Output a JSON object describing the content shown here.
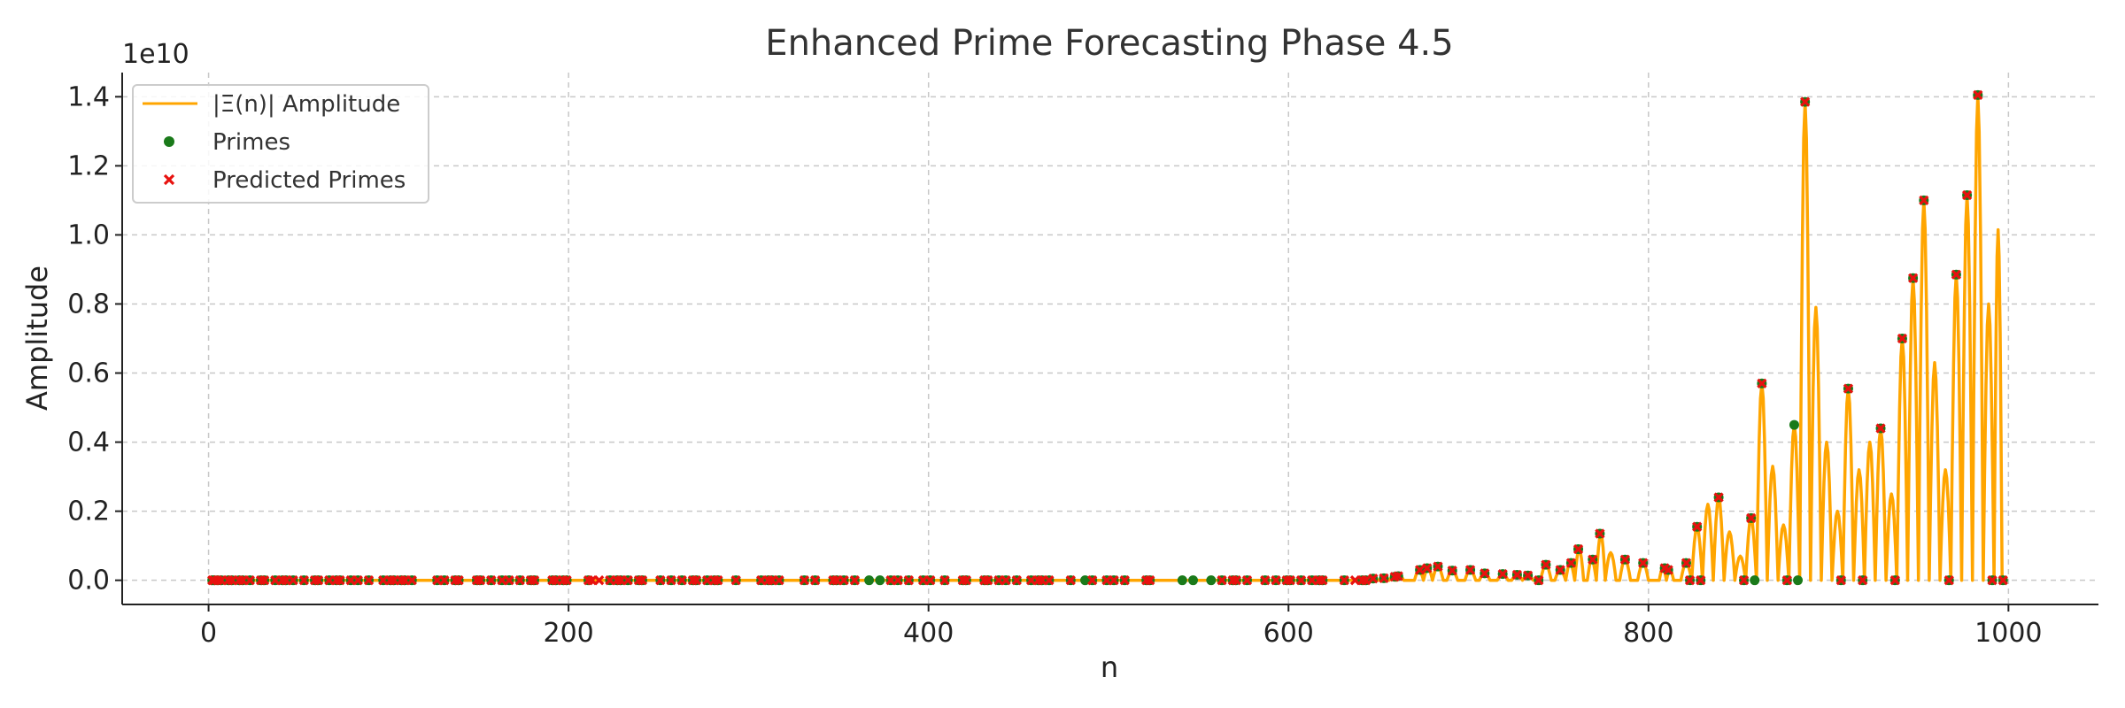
{
  "colors": {
    "amplitude": "#FFA500",
    "primes": "#1a7a1a",
    "predicted": "#e8120f",
    "grid": "#c8c8c8",
    "axis": "#222222"
  },
  "chart_data": {
    "type": "line",
    "title": "Enhanced Prime Forecasting Phase 4.5",
    "xlabel": "n",
    "ylabel": "Amplitude",
    "y_offset_label": "1e10",
    "xlim": [
      -48,
      1050
    ],
    "ylim": [
      -0.07,
      1.47
    ],
    "xticks": [
      0,
      200,
      400,
      600,
      800,
      1000
    ],
    "yticks": [
      0.0,
      0.2,
      0.4,
      0.6,
      0.8,
      1.0,
      1.2,
      1.4
    ],
    "ytick_labels": [
      "0.0",
      "0.2",
      "0.4",
      "0.6",
      "0.8",
      "1.0",
      "1.2",
      "1.4"
    ],
    "grid": true,
    "legend_position": "top-left",
    "legend": [
      "|Ξ(n)| Amplitude",
      "Primes",
      "Predicted Primes"
    ],
    "series": [
      {
        "name": "|Ξ(n)| Amplitude",
        "kind": "line",
        "peaks": [
          [
            647,
            0.005
          ],
          [
            653,
            0.006
          ],
          [
            659,
            0.01
          ],
          [
            661,
            0.012
          ],
          [
            673,
            0.03
          ],
          [
            677,
            0.035
          ],
          [
            683,
            0.04
          ],
          [
            691,
            0.028
          ],
          [
            701,
            0.03
          ],
          [
            709,
            0.02
          ],
          [
            719,
            0.018
          ],
          [
            727,
            0.016
          ],
          [
            733,
            0.014
          ],
          [
            743,
            0.045
          ],
          [
            751,
            0.03
          ],
          [
            757,
            0.05
          ],
          [
            761,
            0.09
          ],
          [
            769,
            0.06
          ],
          [
            773,
            0.135
          ],
          [
            779,
            0.08
          ],
          [
            787,
            0.06
          ],
          [
            797,
            0.05
          ],
          [
            809,
            0.035
          ],
          [
            811,
            0.03
          ],
          [
            821,
            0.05
          ],
          [
            827,
            0.155
          ],
          [
            833,
            0.22
          ],
          [
            839,
            0.24
          ],
          [
            845,
            0.14
          ],
          [
            851,
            0.07
          ],
          [
            857,
            0.18
          ],
          [
            863,
            0.57
          ],
          [
            869,
            0.33
          ],
          [
            875,
            0.16
          ],
          [
            881,
            0.45
          ],
          [
            887,
            1.385
          ],
          [
            893,
            0.79
          ],
          [
            899,
            0.4
          ],
          [
            905,
            0.2
          ],
          [
            911,
            0.555
          ],
          [
            917,
            0.32
          ],
          [
            923,
            0.4
          ],
          [
            929,
            0.44
          ],
          [
            935,
            0.25
          ],
          [
            941,
            0.7
          ],
          [
            947,
            0.875
          ],
          [
            953,
            1.1
          ],
          [
            959,
            0.63
          ],
          [
            965,
            0.32
          ],
          [
            971,
            0.885
          ],
          [
            977,
            1.115
          ],
          [
            983,
            1.405
          ],
          [
            989,
            0.8
          ],
          [
            995,
            1.015
          ]
        ]
      },
      {
        "name": "Primes",
        "kind": "scatter",
        "x": [
          2,
          3,
          5,
          7,
          11,
          13,
          17,
          19,
          23,
          29,
          31,
          37,
          41,
          43,
          47,
          53,
          59,
          61,
          67,
          71,
          73,
          79,
          83,
          89,
          97,
          101,
          103,
          107,
          109,
          113,
          127,
          131,
          137,
          139,
          149,
          151,
          157,
          163,
          167,
          173,
          179,
          181,
          191,
          193,
          197,
          199,
          211,
          223,
          227,
          229,
          233,
          239,
          241,
          251,
          257,
          263,
          269,
          271,
          277,
          281,
          283,
          293,
          307,
          311,
          313,
          317,
          331,
          337,
          347,
          349,
          353,
          359,
          367,
          373,
          379,
          383,
          389,
          397,
          401,
          409,
          419,
          421,
          431,
          433,
          439,
          443,
          449,
          457,
          461,
          463,
          467,
          479,
          487,
          491,
          499,
          503,
          509,
          521,
          523,
          541,
          547,
          557,
          563,
          569,
          571,
          577,
          587,
          593,
          599,
          601,
          607,
          613,
          617,
          619,
          631,
          641,
          643,
          647,
          653,
          659,
          661,
          673,
          677,
          683,
          691,
          701,
          709,
          719,
          727,
          733,
          739,
          743,
          751,
          757,
          761,
          769,
          773,
          787,
          797,
          809,
          811,
          821,
          823,
          827,
          829,
          839,
          853,
          857,
          859,
          863,
          877,
          881,
          883,
          887,
          907,
          911,
          919,
          929,
          937,
          941,
          947,
          953,
          967,
          971,
          977,
          983,
          991,
          997
        ]
      },
      {
        "name": "Predicted Primes",
        "kind": "scatter",
        "x": [
          2,
          3,
          5,
          7,
          11,
          13,
          17,
          19,
          23,
          29,
          31,
          37,
          41,
          43,
          47,
          53,
          59,
          61,
          67,
          71,
          73,
          79,
          83,
          89,
          97,
          101,
          103,
          107,
          109,
          113,
          127,
          131,
          137,
          139,
          149,
          151,
          157,
          163,
          167,
          173,
          179,
          181,
          191,
          193,
          197,
          199,
          211,
          213,
          217,
          223,
          227,
          229,
          233,
          239,
          241,
          251,
          257,
          263,
          269,
          271,
          277,
          281,
          283,
          293,
          307,
          311,
          313,
          317,
          331,
          337,
          347,
          349,
          353,
          359,
          379,
          383,
          389,
          397,
          401,
          409,
          419,
          421,
          431,
          433,
          439,
          443,
          449,
          457,
          461,
          463,
          467,
          479,
          491,
          499,
          503,
          509,
          521,
          523,
          563,
          569,
          571,
          577,
          587,
          593,
          599,
          601,
          607,
          613,
          617,
          619,
          631,
          637,
          641,
          643,
          647,
          653,
          659,
          661,
          673,
          677,
          683,
          691,
          701,
          709,
          719,
          727,
          733,
          739,
          743,
          751,
          757,
          761,
          769,
          773,
          787,
          797,
          809,
          811,
          821,
          823,
          827,
          829,
          839,
          853,
          857,
          863,
          877,
          887,
          907,
          911,
          919,
          929,
          937,
          941,
          947,
          953,
          967,
          971,
          977,
          983,
          991,
          997
        ]
      }
    ]
  }
}
